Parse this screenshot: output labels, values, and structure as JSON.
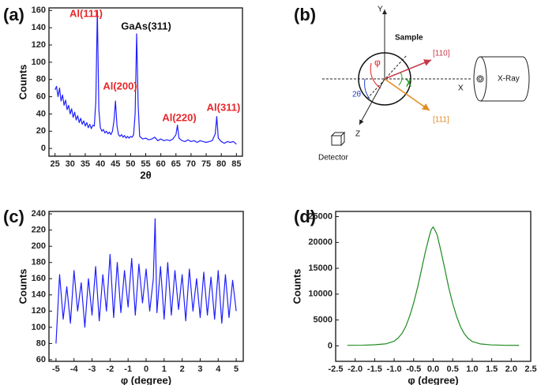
{
  "chart_data": [
    {
      "type": "line",
      "panel_label": "(a)",
      "xlabel": "2θ",
      "ylabel": "Counts",
      "color": "#1f1fff",
      "xlim": [
        23,
        87
      ],
      "ylim": [
        -9,
        163
      ],
      "xticks": [
        25,
        30,
        35,
        40,
        45,
        50,
        55,
        60,
        65,
        70,
        75,
        80,
        85
      ],
      "yticks": [
        0,
        20,
        40,
        60,
        80,
        100,
        120,
        140,
        160
      ],
      "annotations": [
        {
          "text": "Al(111)",
          "color": "#e8262b"
        },
        {
          "text": "GaAs(311)",
          "color": "#111111"
        },
        {
          "text": "Al(200)",
          "color": "#e8262b"
        },
        {
          "text": "Al(220)",
          "color": "#e8262b"
        },
        {
          "text": "Al(311)",
          "color": "#e8262b"
        }
      ],
      "x": [
        25,
        25.5,
        26,
        26.5,
        27,
        27.5,
        28,
        28.5,
        29,
        29.5,
        30,
        30.5,
        31,
        31.5,
        32,
        32.5,
        33,
        33.5,
        34,
        34.5,
        35,
        35.5,
        36,
        36.5,
        37,
        37.5,
        38,
        38.5,
        39,
        39.5,
        40,
        40.5,
        41,
        41.5,
        42,
        42.5,
        43,
        43.5,
        44,
        44.5,
        45,
        45.5,
        46,
        46.5,
        47,
        47.5,
        48,
        48.5,
        49,
        49.5,
        50,
        50.5,
        51,
        51.5,
        52,
        52.5,
        53,
        54,
        55,
        56,
        57,
        58,
        59,
        60,
        61,
        62,
        63,
        64,
        65,
        65.5,
        66,
        67,
        68,
        69,
        70,
        71,
        72,
        73,
        74,
        75,
        76,
        77,
        78,
        78.5,
        79,
        80,
        81,
        82,
        83,
        84,
        85
      ],
      "values": [
        68,
        72,
        60,
        70,
        55,
        62,
        50,
        56,
        45,
        50,
        40,
        46,
        36,
        42,
        33,
        38,
        30,
        35,
        28,
        32,
        26,
        30,
        24,
        28,
        23,
        27,
        26,
        55,
        160,
        45,
        24,
        20,
        22,
        18,
        20,
        17,
        19,
        16,
        20,
        32,
        55,
        26,
        16,
        14,
        16,
        13,
        15,
        12,
        14,
        12,
        14,
        13,
        16,
        40,
        133,
        50,
        14,
        11,
        12,
        10,
        11,
        13,
        9,
        11,
        9,
        10,
        9,
        11,
        16,
        27,
        12,
        9,
        8,
        10,
        8,
        9,
        7,
        9,
        8,
        7,
        8,
        9,
        17,
        37,
        12,
        8,
        6,
        8,
        7,
        8,
        5
      ]
    },
    {
      "type": "line",
      "panel_label": "(c)",
      "xlabel": "φ (degree)",
      "ylabel": "Counts",
      "color": "#1f1fff",
      "xlim": [
        -5.39,
        5.39
      ],
      "ylim": [
        58,
        243
      ],
      "xticks": [
        -5,
        -4,
        -3,
        -2,
        -1,
        0,
        1,
        2,
        3,
        4,
        5
      ],
      "yticks": [
        60,
        80,
        100,
        120,
        140,
        160,
        180,
        200,
        220,
        240
      ],
      "x": [
        -5,
        -4.8,
        -4.6,
        -4.4,
        -4.2,
        -4,
        -3.8,
        -3.6,
        -3.4,
        -3.2,
        -3,
        -2.8,
        -2.6,
        -2.4,
        -2.2,
        -2,
        -1.8,
        -1.6,
        -1.4,
        -1.2,
        -1,
        -0.8,
        -0.6,
        -0.4,
        -0.2,
        0,
        0.2,
        0.4,
        0.5,
        0.6,
        0.8,
        1,
        1.2,
        1.4,
        1.6,
        1.8,
        2,
        2.2,
        2.4,
        2.6,
        2.8,
        3,
        3.2,
        3.4,
        3.6,
        3.8,
        4,
        4.2,
        4.4,
        4.6,
        4.8,
        5
      ],
      "values": [
        80,
        165,
        110,
        150,
        105,
        170,
        120,
        155,
        100,
        160,
        115,
        175,
        108,
        165,
        120,
        190,
        112,
        180,
        118,
        170,
        125,
        185,
        115,
        178,
        130,
        172,
        120,
        160,
        234,
        118,
        175,
        110,
        180,
        115,
        170,
        122,
        165,
        108,
        172,
        120,
        160,
        112,
        168,
        115,
        162,
        110,
        170,
        105,
        165,
        112,
        158,
        120
      ]
    },
    {
      "type": "line",
      "panel_label": "(d)",
      "xlabel": "φ (degree)",
      "ylabel": "Counts",
      "color": "#1e8a1e",
      "xlim": [
        -2.5,
        2.5
      ],
      "ylim": [
        -3000,
        26000
      ],
      "xticks": [
        -2.5,
        {
          "value": -2,
          "label": "-2.0"
        },
        -1.5,
        {
          "value": -1,
          "label": "-1.0"
        },
        -0.5,
        {
          "value": 0,
          "label": "0.0"
        },
        0.5,
        {
          "value": 1,
          "label": "1.0"
        },
        1.5,
        {
          "value": 2,
          "label": "2.0"
        },
        2.5
      ],
      "yticks": [
        0,
        5000,
        10000,
        15000,
        20000,
        25000
      ],
      "x": [
        -2.2,
        -1.8,
        -1.5,
        -1.2,
        -1,
        -0.9,
        -0.8,
        -0.7,
        -0.6,
        -0.5,
        -0.4,
        -0.3,
        -0.2,
        -0.1,
        -0.05,
        0,
        0.05,
        0.1,
        0.2,
        0.3,
        0.4,
        0.5,
        0.6,
        0.7,
        0.8,
        0.9,
        1,
        1.2,
        1.5,
        1.8,
        2.2
      ],
      "values": [
        100,
        120,
        200,
        400,
        900,
        1500,
        2400,
        3800,
        5800,
        8300,
        11300,
        14700,
        18200,
        21200,
        22500,
        23000,
        22300,
        21500,
        18300,
        14800,
        11200,
        8200,
        5700,
        3700,
        2300,
        1400,
        850,
        380,
        180,
        110,
        90
      ]
    }
  ],
  "diagram": {
    "panel_label": "(b)",
    "y_axis": "Y",
    "x_axis": "X",
    "z_axis": "Z",
    "sample": "Sample",
    "dir110": "[110]",
    "dir111": "[111]",
    "xray": "X-Ray",
    "detector": "Detector",
    "two_theta": "2θ",
    "chi": "χ",
    "phi": "φ"
  }
}
